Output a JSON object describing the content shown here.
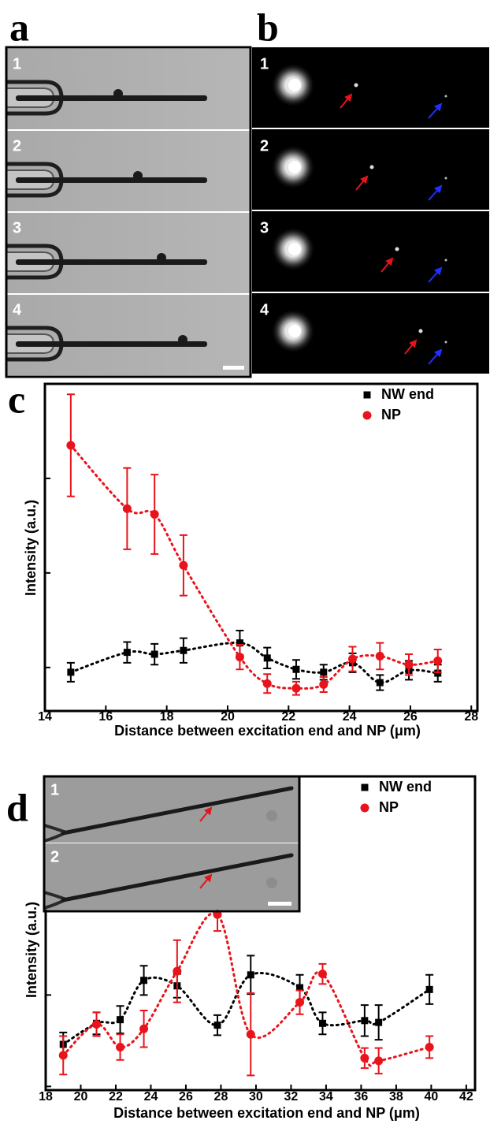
{
  "panels": {
    "a": {
      "label": "a",
      "frames": [
        "1",
        "2",
        "3",
        "4"
      ]
    },
    "b": {
      "label": "b",
      "frames": [
        "1",
        "2",
        "3",
        "4"
      ]
    }
  },
  "chart_data": [
    {
      "type": "scatter",
      "panel_label": "c",
      "x_label": "Distance between excitation end and NP (μm)",
      "y_label": "Intensity (a.u.)",
      "x": [
        14.85,
        16.7,
        17.6,
        18.55,
        20.4,
        21.3,
        22.25,
        23.15,
        24.1,
        25.0,
        25.95,
        26.9
      ],
      "series": [
        {
          "name": "NW end",
          "color": "#000000",
          "marker": "square",
          "values": [
            0.95,
            1.16,
            1.14,
            1.18,
            1.26,
            1.1,
            0.98,
            0.95,
            1.05,
            0.84,
            0.97,
            0.94
          ],
          "errors": [
            0.1,
            0.11,
            0.11,
            0.13,
            0.13,
            0.11,
            0.1,
            0.08,
            0.1,
            0.08,
            0.1,
            0.09
          ]
        },
        {
          "name": "NP",
          "color": "#e8131b",
          "marker": "circle",
          "values": [
            3.35,
            2.68,
            2.62,
            2.08,
            1.11,
            0.83,
            0.78,
            0.82,
            1.09,
            1.12,
            1.03,
            1.07
          ],
          "errors": [
            0.54,
            0.43,
            0.42,
            0.32,
            0.13,
            0.1,
            0.07,
            0.08,
            0.13,
            0.14,
            0.11,
            0.12
          ]
        }
      ],
      "xlim": [
        14,
        28.2
      ],
      "xticks": [
        14,
        16,
        18,
        20,
        22,
        24,
        26,
        28
      ],
      "ylim": [
        0.54,
        4.0
      ],
      "yticks": [
        1,
        2,
        3
      ],
      "ytick_labels": false,
      "legend": "upper right",
      "fit_lines": true
    },
    {
      "type": "scatter",
      "panel_label": "d",
      "x_label": "Distance between excitation end and NP (μm)",
      "y_label": "Intensity (a.u.)",
      "x": [
        19.0,
        20.9,
        22.25,
        23.6,
        25.5,
        27.8,
        29.7,
        32.5,
        33.8,
        36.2,
        37.0,
        39.9
      ],
      "series": [
        {
          "name": "NW end",
          "color": "#000000",
          "marker": "square",
          "values": [
            1.46,
            1.69,
            1.73,
            2.16,
            2.1,
            1.67,
            2.22,
            2.08,
            1.69,
            1.72,
            1.7,
            2.06
          ],
          "errors": [
            0.13,
            0.12,
            0.15,
            0.16,
            0.13,
            0.11,
            0.21,
            0.14,
            0.12,
            0.17,
            0.19,
            0.16
          ]
        },
        {
          "name": "NP",
          "color": "#e8131b",
          "marker": "circle",
          "values": [
            1.34,
            1.68,
            1.43,
            1.63,
            2.26,
            2.88,
            1.57,
            1.92,
            2.23,
            1.31,
            1.28,
            1.43
          ],
          "errors": [
            0.21,
            0.13,
            0.14,
            0.2,
            0.34,
            0.18,
            0.45,
            0.13,
            0.11,
            0.11,
            0.14,
            0.12
          ]
        }
      ],
      "xlim": [
        18,
        42.5
      ],
      "xticks": [
        18,
        20,
        22,
        24,
        26,
        28,
        30,
        32,
        34,
        36,
        38,
        40,
        42
      ],
      "ylim": [
        0.96,
        4.39
      ],
      "yticks": [
        1,
        2
      ],
      "ytick_labels": false,
      "legend": "upper right",
      "fit_lines": true,
      "inset": {
        "frames": [
          "1",
          "2"
        ]
      }
    }
  ]
}
